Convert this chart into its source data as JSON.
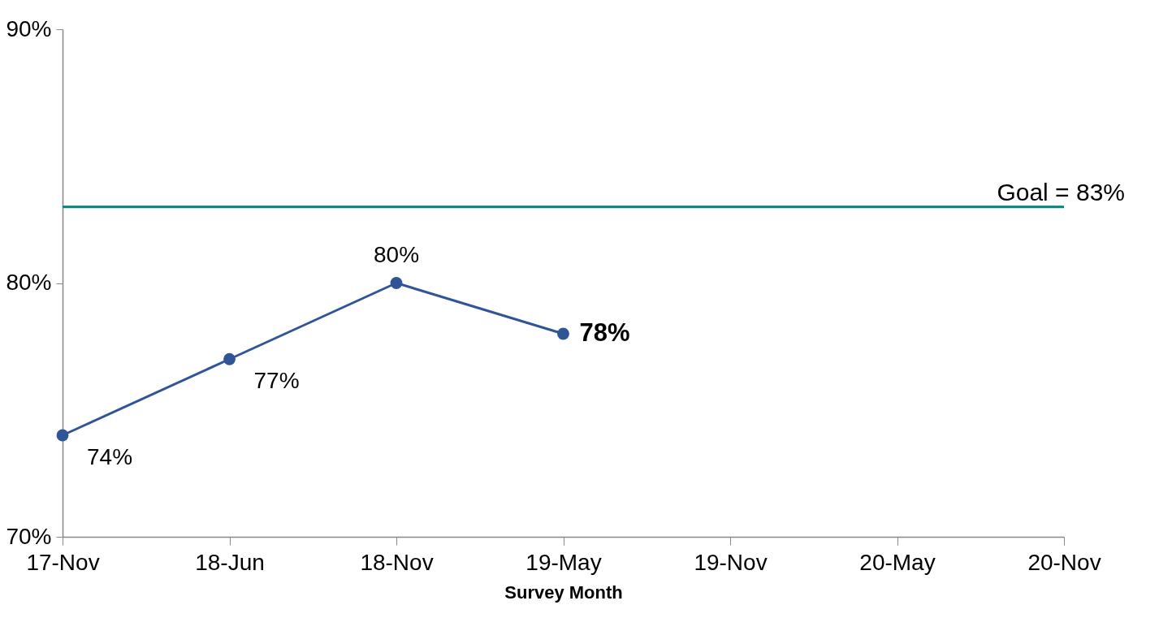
{
  "chart_data": {
    "type": "line",
    "xlabel": "Survey Month",
    "categories": [
      "17-Nov",
      "18-Jun",
      "18-Nov",
      "19-May",
      "19-Nov",
      "20-May",
      "20-Nov"
    ],
    "series": [
      {
        "color": "#2f5597",
        "values": [
          74,
          77,
          80,
          78,
          null,
          null,
          null
        ],
        "value_labels": [
          "74%",
          "77%",
          "80%",
          "78%",
          null,
          null,
          null
        ]
      }
    ],
    "ylim": [
      70,
      90
    ],
    "yticks": [
      {
        "value": 70,
        "label": "70%"
      },
      {
        "value": 80,
        "label": "80%"
      },
      {
        "value": 90,
        "label": "90%"
      }
    ],
    "ref_lines": [
      {
        "axis": "y",
        "value": 83,
        "label": "Goal = 83%",
        "color": "#00857c"
      }
    ],
    "grid": false,
    "marker": "circle",
    "line_style": "solid"
  }
}
